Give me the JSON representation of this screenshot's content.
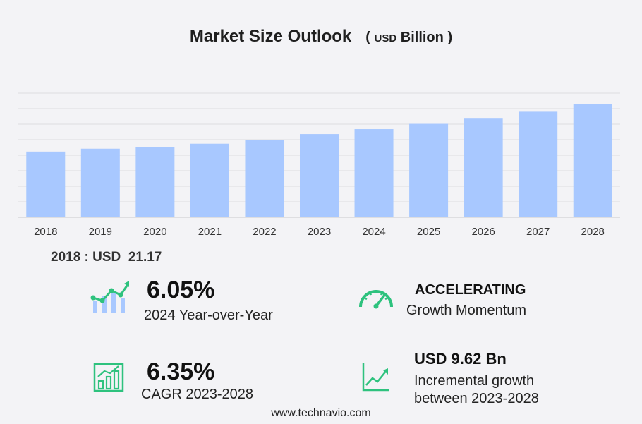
{
  "title": {
    "main": "Market Size Outlook",
    "open_paren": "(",
    "unit_small": "USD",
    "unit_big": "Billion",
    "close_paren": ")"
  },
  "chart_data": {
    "type": "bar",
    "categories": [
      "2018",
      "2019",
      "2020",
      "2021",
      "2022",
      "2023",
      "2024",
      "2025",
      "2026",
      "2027",
      "2028"
    ],
    "values": [
      21.17,
      22.1,
      22.6,
      23.7,
      25.0,
      26.8,
      28.4,
      30.1,
      32.0,
      34.0,
      36.4
    ],
    "ylim": [
      0,
      40
    ],
    "grid": true,
    "bar_color": "#a8c8ff"
  },
  "base": {
    "text": "2018 : USD  21.17"
  },
  "kpis": {
    "yoy": {
      "value": "6.05%",
      "label": "2024 Year-over-Year"
    },
    "momentum": {
      "head": "ACCELERATING",
      "label": "Growth Momentum"
    },
    "cagr": {
      "value": "6.35%",
      "label": "CAGR 2023-2028"
    },
    "incremental": {
      "head": "USD 9.62 Bn",
      "label_line1": "Incremental growth",
      "label_line2": "between 2023-2028"
    }
  },
  "icon_color": "#2ec27e",
  "footer": {
    "url": "www.technavio.com"
  }
}
